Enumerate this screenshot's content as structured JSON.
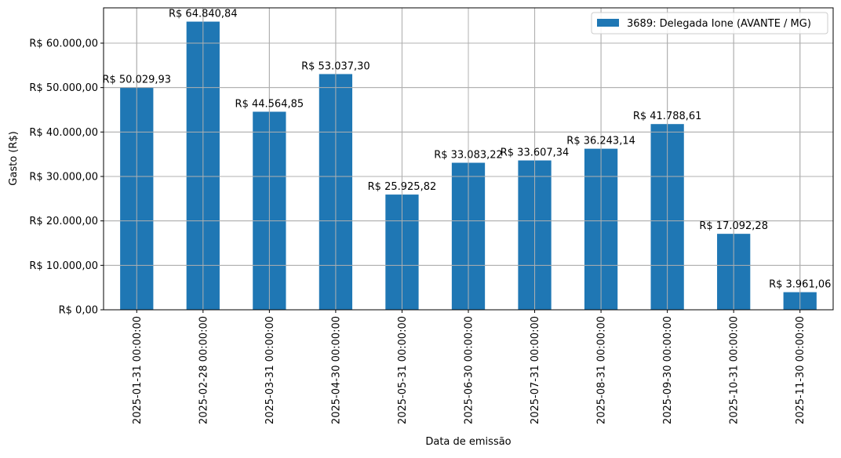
{
  "chart_data": {
    "type": "bar",
    "title": "",
    "xlabel": "Data de emissão",
    "ylabel": "Gasto (R$)",
    "ylim": [
      0,
      68000
    ],
    "grid": true,
    "legend_position": "upper right",
    "bar_color": "#1f77b4",
    "categories": [
      "2025-01-31 00:00:00",
      "2025-02-28 00:00:00",
      "2025-03-31 00:00:00",
      "2025-04-30 00:00:00",
      "2025-05-31 00:00:00",
      "2025-06-30 00:00:00",
      "2025-07-31 00:00:00",
      "2025-08-31 00:00:00",
      "2025-09-30 00:00:00",
      "2025-10-31 00:00:00",
      "2025-11-30 00:00:00"
    ],
    "series": [
      {
        "name": "3689: Delegada Ione (AVANTE / MG)",
        "values": [
          50029.93,
          64840.84,
          44564.85,
          53037.3,
          25925.82,
          33083.22,
          33607.34,
          36243.14,
          41788.61,
          17092.28,
          3961.06
        ]
      }
    ],
    "data_labels": [
      "R$ 50.029,93",
      "R$ 64.840,84",
      "R$ 44.564,85",
      "R$ 53.037,30",
      "R$ 25.925,82",
      "R$ 33.083,22",
      "R$ 33.607,34",
      "R$ 36.243,14",
      "R$ 41.788,61",
      "R$ 17.092,28",
      "R$ 3.961,06"
    ],
    "yticks": [
      0,
      10000,
      20000,
      30000,
      40000,
      50000,
      60000
    ],
    "ytick_labels": [
      "R$ 0,00",
      "R$ 10.000,00",
      "R$ 20.000,00",
      "R$ 30.000,00",
      "R$ 40.000,00",
      "R$ 50.000,00",
      "R$ 60.000,00"
    ]
  }
}
